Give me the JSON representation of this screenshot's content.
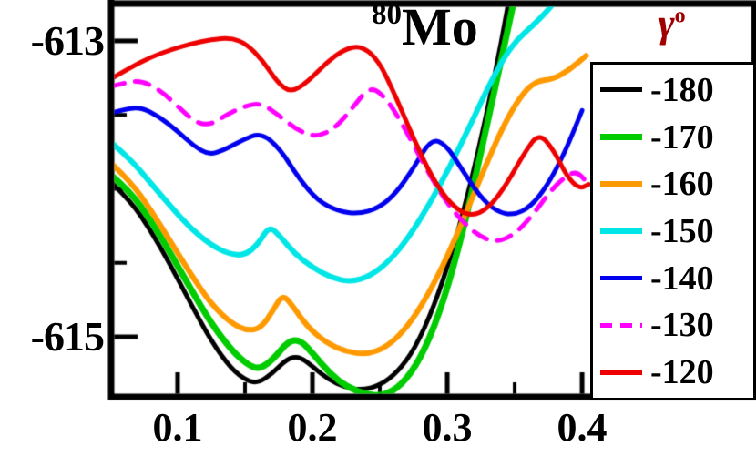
{
  "title": {
    "mass": "80",
    "element": "Mo"
  },
  "axes": {
    "x_tick_labels": [
      "0.1",
      "0.2",
      "0.3",
      "0.4"
    ],
    "y_tick_labels": [
      "-613",
      "-615"
    ]
  },
  "legend": {
    "header_symbol": "γ",
    "header_superscript": "o",
    "header_color": "#a00000",
    "entries": [
      {
        "label": "-180",
        "color": "#000000",
        "dash": "solid"
      },
      {
        "label": "-170",
        "color": "#00cc00",
        "dash": "solid"
      },
      {
        "label": "-160",
        "color": "#ff9900",
        "dash": "solid"
      },
      {
        "label": "-150",
        "color": "#00e6e6",
        "dash": "solid"
      },
      {
        "label": "-140",
        "color": "#0000ee",
        "dash": "solid"
      },
      {
        "label": "-130",
        "color": "#ff00ff",
        "dash": "dashed"
      },
      {
        "label": "-120",
        "color": "#ee0000",
        "dash": "solid"
      }
    ]
  },
  "chart_data": {
    "type": "line",
    "title": "80Mo",
    "legend_title": "γ°",
    "xlabel": "",
    "ylabel": "",
    "grid": false,
    "legend_position": "right",
    "xlim": [
      0.0507,
      0.529
    ],
    "ylim": [
      -615.406,
      -612.748
    ],
    "x_ticks": [
      0.1,
      0.2,
      0.3,
      0.4
    ],
    "x_minor_ticks": [
      0.15,
      0.25,
      0.35,
      0.45
    ],
    "y_ticks": [
      -613,
      -615
    ],
    "y_minor_ticks": [
      -613.5,
      -614,
      -614.5
    ],
    "series": [
      {
        "name": "-180",
        "color": "#000000",
        "dash": "solid",
        "width": 5,
        "points": [
          [
            0.05,
            -613.95
          ],
          [
            0.065,
            -614.08
          ],
          [
            0.08,
            -614.28
          ],
          [
            0.095,
            -614.52
          ],
          [
            0.11,
            -614.78
          ],
          [
            0.125,
            -615.03
          ],
          [
            0.14,
            -615.22
          ],
          [
            0.152,
            -615.3
          ],
          [
            0.16,
            -615.31
          ],
          [
            0.17,
            -615.25
          ],
          [
            0.181,
            -615.15
          ],
          [
            0.19,
            -615.13
          ],
          [
            0.2,
            -615.2
          ],
          [
            0.212,
            -615.29
          ],
          [
            0.224,
            -615.34
          ],
          [
            0.236,
            -615.36
          ],
          [
            0.25,
            -615.33
          ],
          [
            0.263,
            -615.24
          ],
          [
            0.276,
            -615.08
          ],
          [
            0.29,
            -614.8
          ],
          [
            0.304,
            -614.42
          ],
          [
            0.317,
            -613.98
          ],
          [
            0.329,
            -613.5
          ],
          [
            0.34,
            -613.02
          ],
          [
            0.349,
            -612.55
          ]
        ]
      },
      {
        "name": "-170",
        "color": "#00cc00",
        "dash": "solid",
        "width": 7,
        "points": [
          [
            0.05,
            -613.9
          ],
          [
            0.065,
            -614.02
          ],
          [
            0.08,
            -614.21
          ],
          [
            0.095,
            -614.44
          ],
          [
            0.11,
            -614.68
          ],
          [
            0.125,
            -614.91
          ],
          [
            0.14,
            -615.09
          ],
          [
            0.152,
            -615.19
          ],
          [
            0.161,
            -615.22
          ],
          [
            0.171,
            -615.15
          ],
          [
            0.182,
            -615.03
          ],
          [
            0.191,
            -615.02
          ],
          [
            0.201,
            -615.12
          ],
          [
            0.213,
            -615.25
          ],
          [
            0.226,
            -615.34
          ],
          [
            0.24,
            -615.39
          ],
          [
            0.252,
            -615.4
          ],
          [
            0.266,
            -615.33
          ],
          [
            0.28,
            -615.15
          ],
          [
            0.294,
            -614.85
          ],
          [
            0.308,
            -614.42
          ],
          [
            0.321,
            -613.92
          ],
          [
            0.334,
            -613.38
          ],
          [
            0.346,
            -612.88
          ],
          [
            0.356,
            -612.45
          ]
        ]
      },
      {
        "name": "-160",
        "color": "#ff9900",
        "dash": "solid",
        "width": 6,
        "points": [
          [
            0.05,
            -613.82
          ],
          [
            0.065,
            -613.95
          ],
          [
            0.08,
            -614.14
          ],
          [
            0.095,
            -614.36
          ],
          [
            0.11,
            -614.58
          ],
          [
            0.125,
            -614.78
          ],
          [
            0.14,
            -614.91
          ],
          [
            0.152,
            -614.96
          ],
          [
            0.162,
            -614.94
          ],
          [
            0.171,
            -614.82
          ],
          [
            0.178,
            -614.71
          ],
          [
            0.186,
            -614.8
          ],
          [
            0.196,
            -614.93
          ],
          [
            0.21,
            -615.04
          ],
          [
            0.225,
            -615.1
          ],
          [
            0.24,
            -615.12
          ],
          [
            0.255,
            -615.07
          ],
          [
            0.27,
            -614.94
          ],
          [
            0.285,
            -614.73
          ],
          [
            0.3,
            -614.46
          ],
          [
            0.315,
            -614.14
          ],
          [
            0.33,
            -613.81
          ],
          [
            0.344,
            -613.53
          ],
          [
            0.357,
            -613.34
          ],
          [
            0.367,
            -613.27
          ],
          [
            0.378,
            -613.26
          ],
          [
            0.39,
            -613.2
          ],
          [
            0.403,
            -613.1
          ]
        ]
      },
      {
        "name": "-150",
        "color": "#00e6e6",
        "dash": "solid",
        "width": 6,
        "points": [
          [
            0.05,
            -613.68
          ],
          [
            0.065,
            -613.8
          ],
          [
            0.08,
            -613.96
          ],
          [
            0.095,
            -614.12
          ],
          [
            0.11,
            -614.27
          ],
          [
            0.125,
            -614.38
          ],
          [
            0.138,
            -614.44
          ],
          [
            0.15,
            -614.45
          ],
          [
            0.16,
            -614.37
          ],
          [
            0.168,
            -614.25
          ],
          [
            0.176,
            -614.32
          ],
          [
            0.187,
            -614.44
          ],
          [
            0.2,
            -614.53
          ],
          [
            0.214,
            -614.6
          ],
          [
            0.228,
            -614.63
          ],
          [
            0.243,
            -614.59
          ],
          [
            0.258,
            -614.48
          ],
          [
            0.272,
            -614.32
          ],
          [
            0.287,
            -614.1
          ],
          [
            0.302,
            -613.85
          ],
          [
            0.317,
            -613.57
          ],
          [
            0.331,
            -613.3
          ],
          [
            0.343,
            -613.1
          ],
          [
            0.352,
            -612.99
          ],
          [
            0.363,
            -612.9
          ],
          [
            0.374,
            -612.8
          ],
          [
            0.387,
            -612.66
          ],
          [
            0.4,
            -612.5
          ]
        ]
      },
      {
        "name": "-140",
        "color": "#0000ee",
        "dash": "solid",
        "width": 5,
        "points": [
          [
            0.05,
            -613.49
          ],
          [
            0.061,
            -613.46
          ],
          [
            0.073,
            -613.45
          ],
          [
            0.086,
            -613.51
          ],
          [
            0.1,
            -613.61
          ],
          [
            0.112,
            -613.71
          ],
          [
            0.123,
            -613.77
          ],
          [
            0.134,
            -613.74
          ],
          [
            0.148,
            -613.67
          ],
          [
            0.162,
            -613.62
          ],
          [
            0.176,
            -613.73
          ],
          [
            0.19,
            -613.93
          ],
          [
            0.204,
            -614.08
          ],
          [
            0.219,
            -614.15
          ],
          [
            0.234,
            -614.17
          ],
          [
            0.249,
            -614.13
          ],
          [
            0.262,
            -614.03
          ],
          [
            0.275,
            -613.86
          ],
          [
            0.288,
            -613.66
          ],
          [
            0.299,
            -613.7
          ],
          [
            0.311,
            -613.87
          ],
          [
            0.324,
            -614.05
          ],
          [
            0.336,
            -614.15
          ],
          [
            0.349,
            -614.18
          ],
          [
            0.362,
            -614.12
          ],
          [
            0.374,
            -613.98
          ],
          [
            0.387,
            -613.76
          ],
          [
            0.4,
            -613.47
          ]
        ]
      },
      {
        "name": "-130",
        "color": "#ff00ff",
        "dash": "dashed",
        "width": 5,
        "points": [
          [
            0.05,
            -613.31
          ],
          [
            0.062,
            -613.28
          ],
          [
            0.074,
            -613.27
          ],
          [
            0.088,
            -613.34
          ],
          [
            0.101,
            -613.45
          ],
          [
            0.113,
            -613.55
          ],
          [
            0.124,
            -613.57
          ],
          [
            0.136,
            -613.5
          ],
          [
            0.15,
            -613.44
          ],
          [
            0.162,
            -613.42
          ],
          [
            0.176,
            -613.51
          ],
          [
            0.19,
            -613.61
          ],
          [
            0.203,
            -613.65
          ],
          [
            0.217,
            -613.59
          ],
          [
            0.23,
            -613.45
          ],
          [
            0.243,
            -613.3
          ],
          [
            0.256,
            -613.4
          ],
          [
            0.269,
            -613.6
          ],
          [
            0.283,
            -613.84
          ],
          [
            0.297,
            -614.06
          ],
          [
            0.311,
            -614.22
          ],
          [
            0.325,
            -614.33
          ],
          [
            0.338,
            -614.36
          ],
          [
            0.351,
            -614.3
          ],
          [
            0.364,
            -614.17
          ],
          [
            0.376,
            -614.02
          ],
          [
            0.387,
            -613.92
          ],
          [
            0.396,
            -613.88
          ],
          [
            0.404,
            -613.96
          ]
        ]
      },
      {
        "name": "-120",
        "color": "#ee0000",
        "dash": "solid",
        "width": 5,
        "points": [
          [
            0.05,
            -613.26
          ],
          [
            0.065,
            -613.18
          ],
          [
            0.08,
            -613.11
          ],
          [
            0.095,
            -613.06
          ],
          [
            0.11,
            -613.02
          ],
          [
            0.125,
            -612.99
          ],
          [
            0.14,
            -612.98
          ],
          [
            0.151,
            -613.02
          ],
          [
            0.163,
            -613.13
          ],
          [
            0.174,
            -613.28
          ],
          [
            0.184,
            -613.35
          ],
          [
            0.196,
            -613.28
          ],
          [
            0.21,
            -613.15
          ],
          [
            0.223,
            -613.06
          ],
          [
            0.236,
            -613.03
          ],
          [
            0.249,
            -613.13
          ],
          [
            0.262,
            -613.38
          ],
          [
            0.275,
            -613.66
          ],
          [
            0.289,
            -613.93
          ],
          [
            0.303,
            -614.11
          ],
          [
            0.317,
            -614.19
          ],
          [
            0.331,
            -614.13
          ],
          [
            0.344,
            -613.97
          ],
          [
            0.357,
            -613.76
          ],
          [
            0.368,
            -613.62
          ],
          [
            0.379,
            -613.74
          ],
          [
            0.389,
            -613.92
          ],
          [
            0.398,
            -614.0
          ],
          [
            0.405,
            -613.97
          ]
        ]
      }
    ]
  }
}
